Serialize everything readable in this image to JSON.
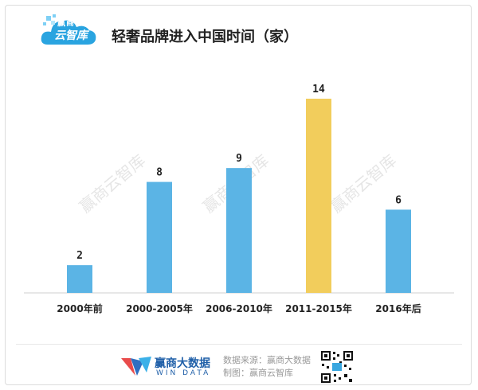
{
  "header": {
    "logo_top": "赢商",
    "logo_bottom": "云智库",
    "title": "轻奢品牌进入中国时间（家）"
  },
  "chart_data": {
    "type": "bar",
    "title": "轻奢品牌进入中国时间（家）",
    "categories": [
      "2000年前",
      "2000-2005年",
      "2006-2010年",
      "2011-2015年",
      "2016年后"
    ],
    "values": [
      2,
      8,
      9,
      14,
      6
    ],
    "ylim": [
      0,
      14
    ],
    "grid": false,
    "colors": [
      "#5bb4e5",
      "#5bb4e5",
      "#5bb4e5",
      "#f2cd5c",
      "#5bb4e5"
    ],
    "xlabel": "",
    "ylabel": ""
  },
  "watermark": "赢商云智库",
  "footer": {
    "brand_cn": "赢商大数据",
    "brand_en": "WIN DATA",
    "source_line": "数据来源：赢商大数据",
    "maker_line": "制图：赢商云智库"
  }
}
